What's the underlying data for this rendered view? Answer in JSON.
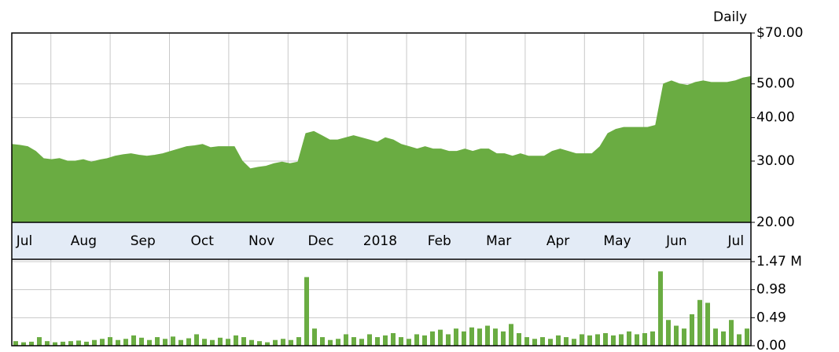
{
  "chart_data": [
    {
      "type": "area",
      "annotation": "Daily",
      "log_scale": true,
      "grid": true,
      "color": "#6aac42",
      "month_labels": [
        "Jul",
        "Aug",
        "Sep",
        "Oct",
        "Nov",
        "Dec",
        "2018",
        "Feb",
        "Mar",
        "Apr",
        "May",
        "Jun",
        "Jul"
      ],
      "ylim": [
        20,
        70
      ],
      "yticks": [
        {
          "value": 70,
          "label": "$70.00"
        },
        {
          "value": 50,
          "label": "50.00"
        },
        {
          "value": 40,
          "label": "40.00"
        },
        {
          "value": 30,
          "label": "30.00"
        },
        {
          "value": 20,
          "label": "20.00"
        }
      ],
      "values": [
        33.5,
        33.3,
        33,
        32,
        30.5,
        30.3,
        30.5,
        30,
        30,
        30.3,
        29.8,
        30.2,
        30.5,
        31,
        31.3,
        31.5,
        31.2,
        31,
        31.2,
        31.5,
        32,
        32.5,
        33,
        33.2,
        33.5,
        32.8,
        33,
        33,
        33,
        30,
        28.5,
        28.8,
        29,
        29.5,
        29.8,
        29.5,
        29.8,
        36,
        36.5,
        35.5,
        34.5,
        34.5,
        35,
        35.5,
        35,
        34.5,
        34,
        35,
        34.5,
        33.5,
        33,
        32.5,
        33,
        32.5,
        32.5,
        32,
        32,
        32.5,
        32,
        32.5,
        32.5,
        31.5,
        31.5,
        31,
        31.5,
        31,
        31,
        31,
        32,
        32.5,
        32,
        31.5,
        31.5,
        31.5,
        33,
        36,
        37,
        37.5,
        37.5,
        37.5,
        37.5,
        38,
        50,
        51,
        50,
        49.5,
        50.5,
        51,
        50.5,
        50.5,
        50.5,
        51,
        52,
        52.5
      ]
    },
    {
      "type": "bar",
      "grid": true,
      "color": "#6aac42",
      "ylim": [
        0,
        1.47
      ],
      "yticks": [
        {
          "value": 1.47,
          "label": "1.47 M"
        },
        0.98,
        0.49,
        {
          "value": 0,
          "label": "0.00"
        }
      ],
      "values": [
        0.08,
        0.06,
        0.07,
        0.15,
        0.08,
        0.06,
        0.07,
        0.08,
        0.09,
        0.07,
        0.1,
        0.12,
        0.15,
        0.1,
        0.12,
        0.18,
        0.14,
        0.1,
        0.15,
        0.12,
        0.16,
        0.1,
        0.13,
        0.2,
        0.12,
        0.1,
        0.14,
        0.12,
        0.18,
        0.15,
        0.1,
        0.08,
        0.06,
        0.1,
        0.12,
        0.1,
        0.15,
        1.2,
        0.3,
        0.15,
        0.1,
        0.12,
        0.2,
        0.15,
        0.12,
        0.2,
        0.15,
        0.18,
        0.22,
        0.15,
        0.12,
        0.2,
        0.18,
        0.25,
        0.28,
        0.2,
        0.3,
        0.25,
        0.32,
        0.3,
        0.35,
        0.3,
        0.25,
        0.38,
        0.22,
        0.15,
        0.12,
        0.15,
        0.12,
        0.18,
        0.15,
        0.12,
        0.2,
        0.18,
        0.2,
        0.22,
        0.18,
        0.2,
        0.25,
        0.2,
        0.22,
        0.25,
        1.3,
        0.45,
        0.35,
        0.3,
        0.55,
        0.8,
        0.75,
        0.3,
        0.25,
        0.45,
        0.2,
        0.3
      ]
    }
  ]
}
